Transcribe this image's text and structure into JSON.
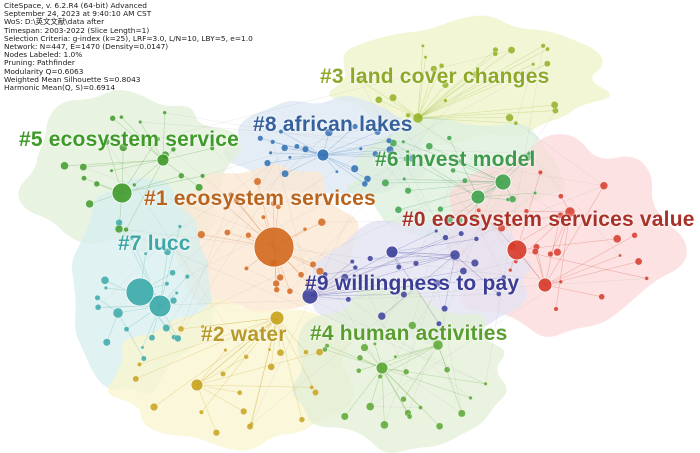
{
  "info": {
    "lines": [
      "CiteSpace, v. 6.2.R4 (64-bit) Advanced",
      "September 24, 2023 at 9:40:10 AM CST",
      "WoS: D:\\英文文献\\data after",
      "Timespan: 2003-2022 (Slice Length=1)",
      "Selection Criteria: g-index (k=25), LRF=3.0, L/N=10, LBY=5, e=1.0",
      "Network: N=447, E=1470 (Density=0.0147)",
      "Nodes Labeled: 1.0%",
      "Pruning: Pathfinder",
      "Modularity Q=0.6063",
      "Weighted Mean Silhouette S=0.8043",
      "Harmonic Mean(Q, S)=0.6914"
    ]
  },
  "clusters": [
    {
      "id": 0,
      "label": "#0 ecosystem services value",
      "color": "#d63a2a"
    },
    {
      "id": 1,
      "label": "#1 ecosystem services",
      "color": "#d2691e"
    },
    {
      "id": 2,
      "label": "#2 water",
      "color": "#c8a21c"
    },
    {
      "id": 3,
      "label": "#3 land cover changes",
      "color": "#93b023"
    },
    {
      "id": 4,
      "label": "#4 human activities",
      "color": "#5aa632"
    },
    {
      "id": 5,
      "label": "#5 ecosystem service",
      "color": "#3f9a2a"
    },
    {
      "id": 6,
      "label": "#6 invest model",
      "color": "#3fa34d"
    },
    {
      "id": 7,
      "label": "#7 lucc",
      "color": "#3ba8a8"
    },
    {
      "id": 8,
      "label": "#8 african lakes",
      "color": "#2f6fb3"
    },
    {
      "id": 9,
      "label": "#9 willingness to pay",
      "color": "#3b3f9a"
    }
  ]
}
